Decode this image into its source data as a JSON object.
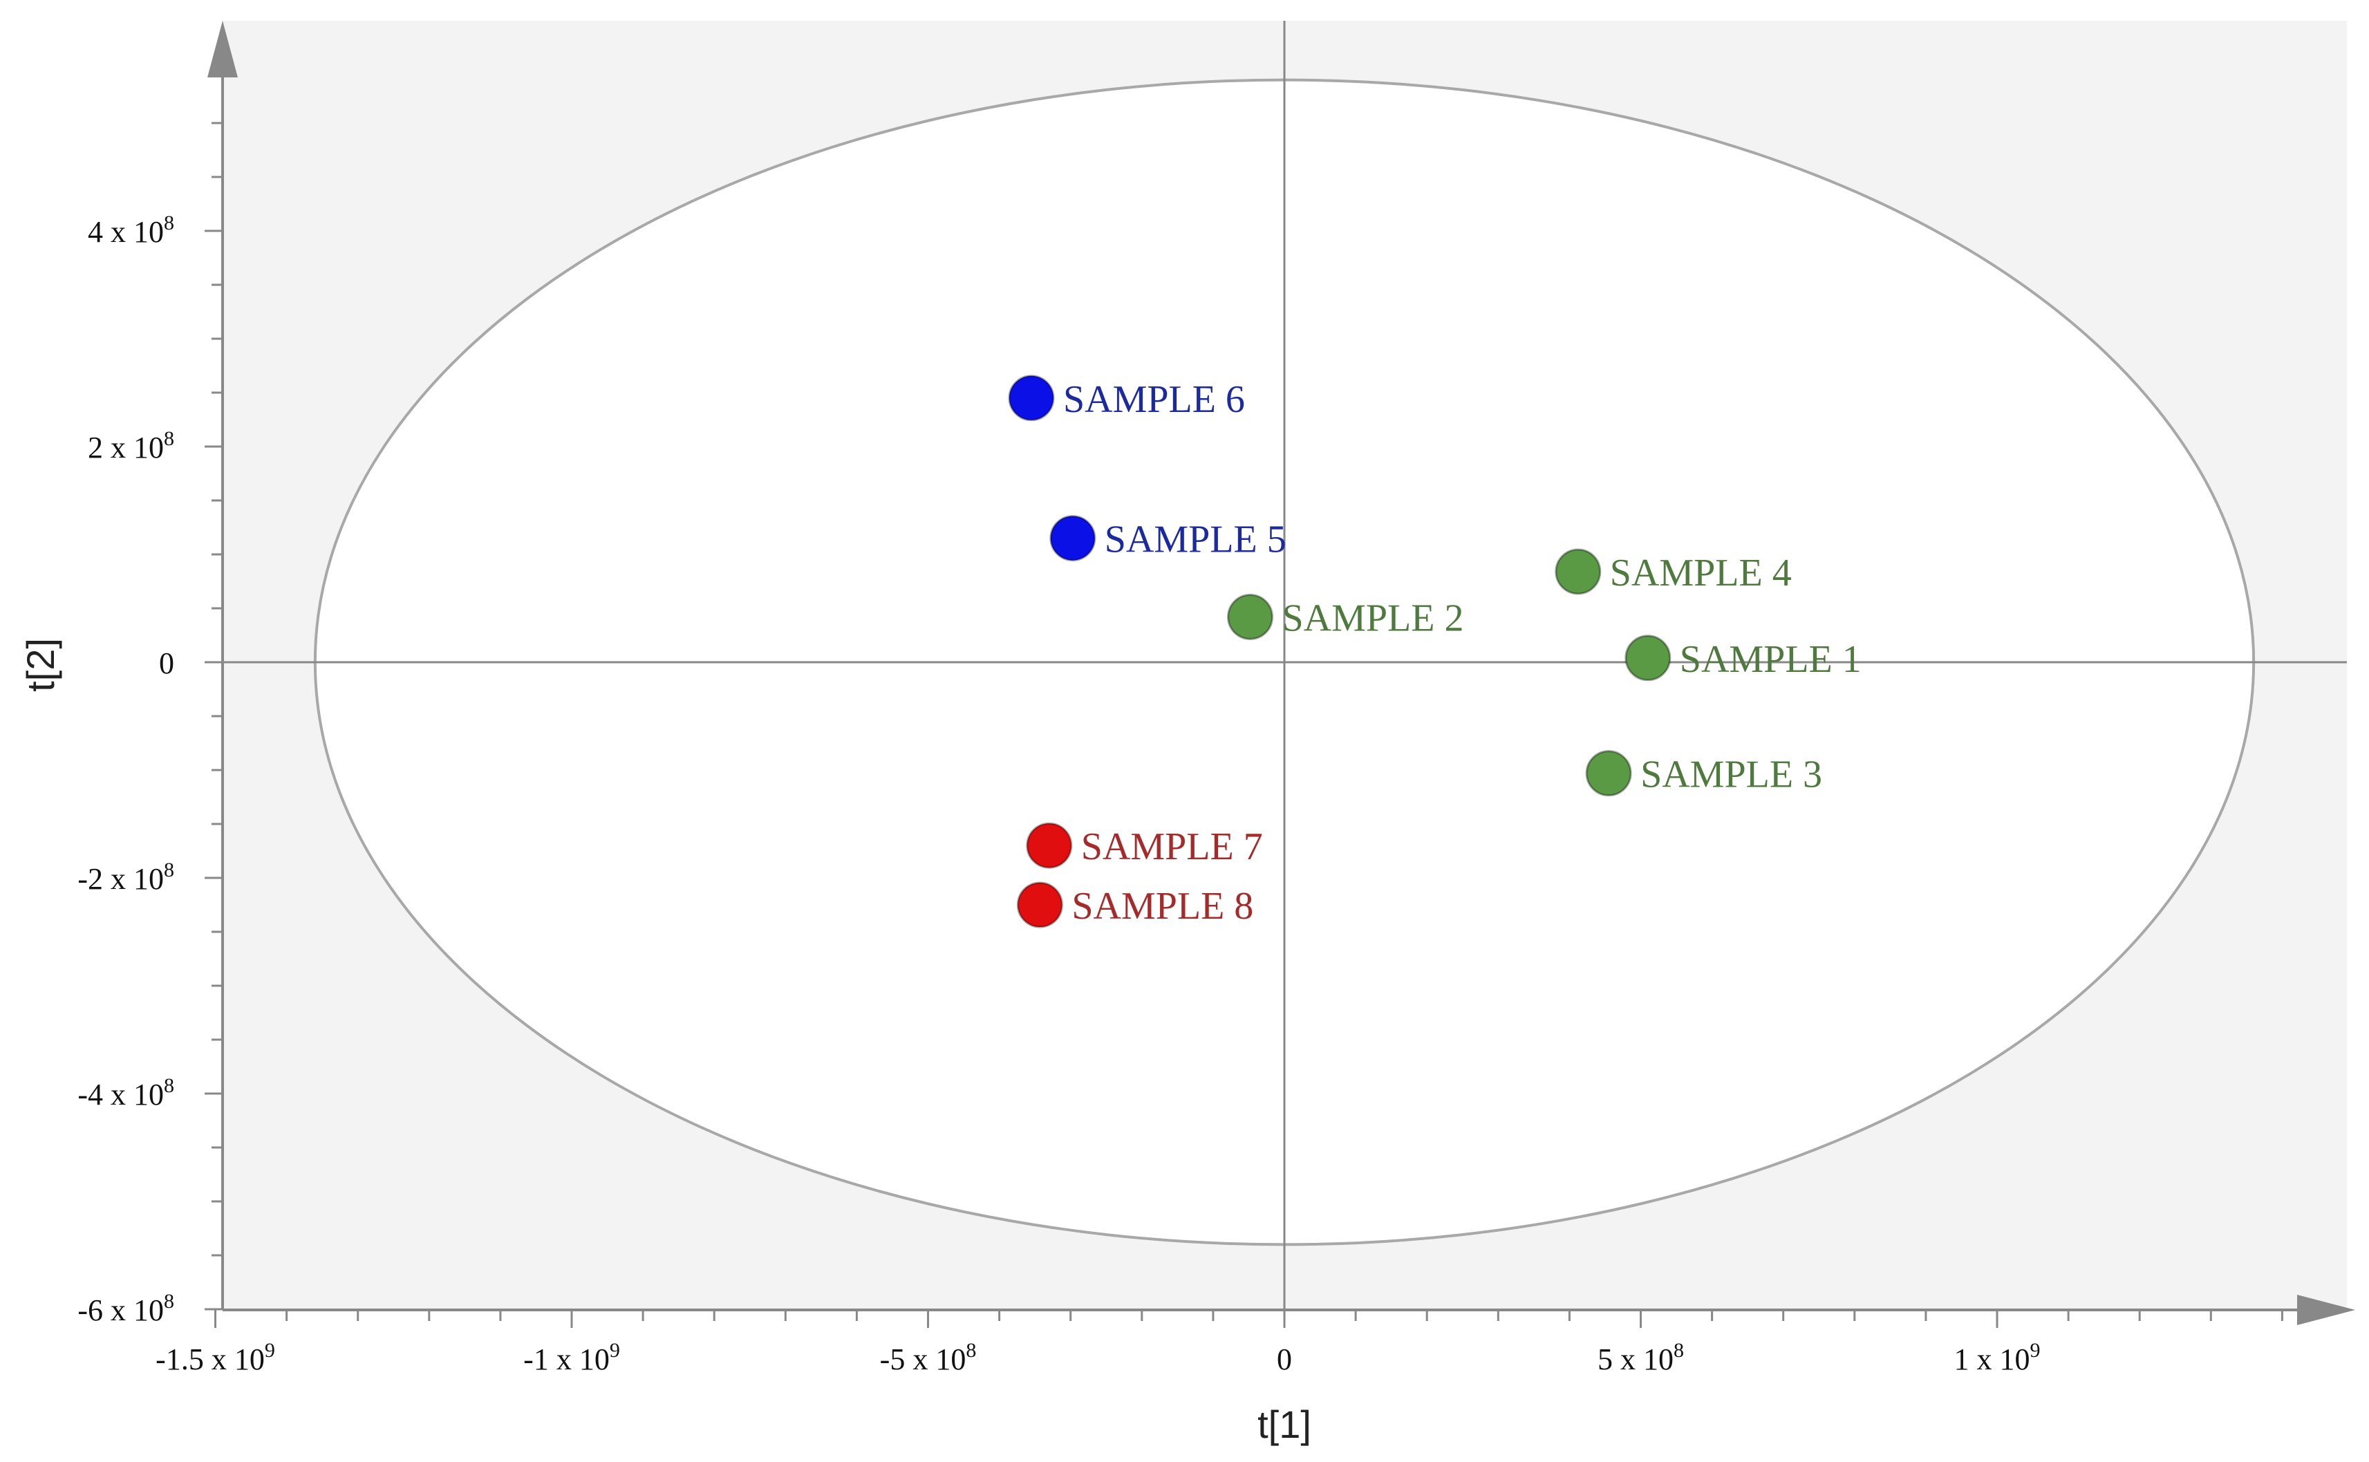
{
  "chart_data": {
    "type": "scatter",
    "xlabel": "t[1]",
    "ylabel": "t[2]",
    "xlim": [
      -1500000000,
      1500000000
    ],
    "ylim": [
      -600000000,
      600000000
    ],
    "x_ticks": [
      {
        "value": -1500000000,
        "base": "-1.5 x 10",
        "exp": "9"
      },
      {
        "value": -1000000000,
        "base": "-1 x 10",
        "exp": "9"
      },
      {
        "value": -500000000,
        "base": "-5 x 10",
        "exp": "8"
      },
      {
        "value": 0,
        "base": "0",
        "exp": ""
      },
      {
        "value": 500000000,
        "base": "5 x 10",
        "exp": "8"
      },
      {
        "value": 1000000000,
        "base": "1 x 10",
        "exp": "9"
      }
    ],
    "y_ticks": [
      {
        "value": 400000000,
        "base": "4 x 10",
        "exp": "8"
      },
      {
        "value": 200000000,
        "base": "2 x 10",
        "exp": "8"
      },
      {
        "value": 0,
        "base": "0",
        "exp": ""
      },
      {
        "value": -200000000,
        "base": "-2 x 10",
        "exp": "8"
      },
      {
        "value": -400000000,
        "base": "-4 x 10",
        "exp": "8"
      },
      {
        "value": -600000000,
        "base": "-6 x 10",
        "exp": "8"
      }
    ],
    "ellipse": {
      "rx": 1360000000,
      "ry": 540000000
    },
    "grid": false,
    "points": [
      {
        "label": "SAMPLE 6",
        "x": -355000000,
        "y": 245000000,
        "color": "#0a10e6",
        "label_color": "#1c2aa0"
      },
      {
        "label": "SAMPLE 5",
        "x": -297000000,
        "y": 115000000,
        "color": "#0a10e6",
        "label_color": "#1c2aa0"
      },
      {
        "label": "SAMPLE 4",
        "x": 412000000,
        "y": 84000000,
        "color": "#5a9a45",
        "label_color": "#4f7a3d"
      },
      {
        "label": "SAMPLE 2",
        "x": -48000000,
        "y": 42000000,
        "color": "#5a9a45",
        "label_color": "#4f7a3d"
      },
      {
        "label": "SAMPLE 1",
        "x": 510000000,
        "y": 4000000,
        "color": "#5a9a45",
        "label_color": "#4f7a3d"
      },
      {
        "label": "SAMPLE 3",
        "x": 455000000,
        "y": -103000000,
        "color": "#5a9a45",
        "label_color": "#4f7a3d"
      },
      {
        "label": "SAMPLE 7",
        "x": -330000000,
        "y": -170000000,
        "color": "#e00e0e",
        "label_color": "#a52a2a"
      },
      {
        "label": "SAMPLE 8",
        "x": -343000000,
        "y": -225000000,
        "color": "#e00e0e",
        "label_color": "#a52a2a"
      }
    ],
    "colors": {
      "plot_background": "#f3f3f3",
      "ellipse_fill": "#ffffff",
      "ellipse_stroke": "#a8a8a8",
      "axis": "#888888",
      "tick_label": "#111111"
    }
  }
}
